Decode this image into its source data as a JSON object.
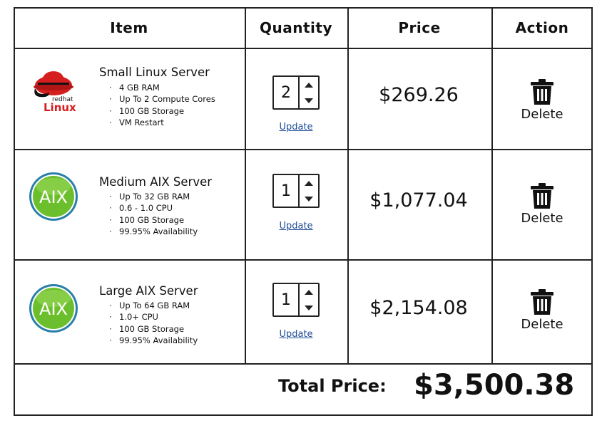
{
  "table": {
    "headers": {
      "item": "Item",
      "quantity": "Quantity",
      "price": "Price",
      "action": "Action"
    },
    "rows": [
      {
        "title": "Small Linux Server",
        "logo": "redhat-linux-logo",
        "logo_text_top": "redhat",
        "logo_text_bottom": "Linux",
        "features": [
          "4 GB RAM",
          "Up To 2 Compute Cores",
          "100 GB Storage",
          "VM Restart"
        ],
        "quantity": "2",
        "update_label": "Update",
        "price": "$269.26",
        "action_label": "Delete"
      },
      {
        "title": "Medium AIX Server",
        "logo": "aix-logo",
        "logo_text": "AIX",
        "features": [
          "Up To 32 GB RAM",
          "0.6 - 1.0 CPU",
          "100 GB Storage",
          "99.95% Availability"
        ],
        "quantity": "1",
        "update_label": "Update",
        "price": "$1,077.04",
        "action_label": "Delete"
      },
      {
        "title": "Large AIX Server",
        "logo": "aix-logo",
        "logo_text": "AIX",
        "features": [
          "Up To 64 GB RAM",
          "1.0+ CPU",
          "100 GB Storage",
          "99.95% Availability"
        ],
        "quantity": "1",
        "update_label": "Update",
        "price": "$2,154.08",
        "action_label": "Delete"
      }
    ]
  },
  "total": {
    "label": "Total Price:",
    "value": "$3,500.38"
  },
  "colors": {
    "link": "#1f4e9a",
    "redhat_red": "#d71e1e",
    "aix_green": "#6cbf2c",
    "aix_ring": "#2a7fa8"
  }
}
